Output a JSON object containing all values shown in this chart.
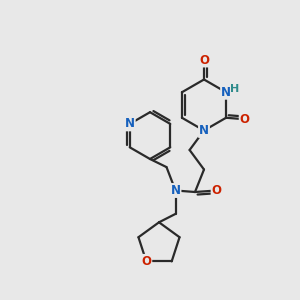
{
  "bg_color": "#e8e8e8",
  "bond_color": "#2a2a2a",
  "bond_width": 1.6,
  "atom_colors": {
    "N": "#1560bd",
    "O": "#cc2200",
    "H": "#2e8b8b",
    "C": "#2a2a2a"
  },
  "font_size_atom": 8.5,
  "fig_size": [
    3.0,
    3.0
  ],
  "dpi": 100,
  "xlim": [
    0,
    10
  ],
  "ylim": [
    0,
    10
  ]
}
